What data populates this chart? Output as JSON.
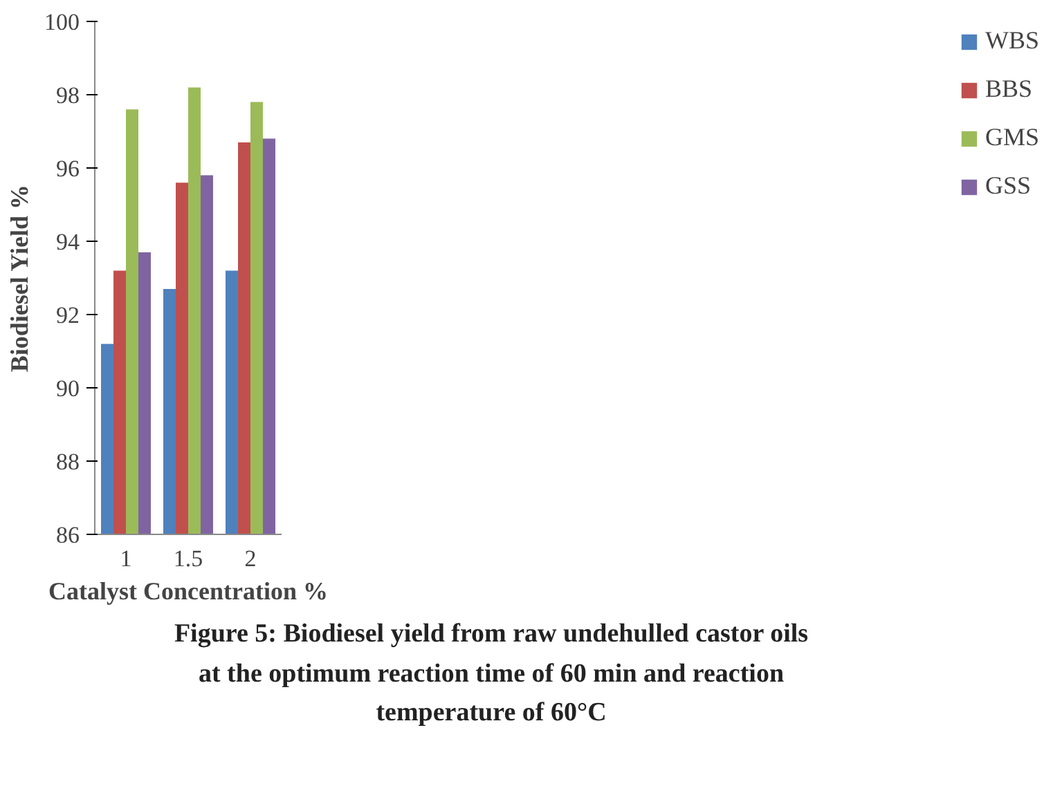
{
  "chart_data": {
    "type": "bar",
    "title": "Figure 5: Biodiesel yield from raw undehulled castor oils at the optimum reaction time of 60 min and reaction temperature of 60°C",
    "xlabel": "Catalyst Concentration %",
    "ylabel": "Biodiesel Yield %",
    "categories": [
      "1",
      "1.5",
      "2"
    ],
    "series": [
      {
        "name": "WBS",
        "color": "#4f81bd",
        "values": [
          91.2,
          92.7,
          93.2
        ]
      },
      {
        "name": "BBS",
        "color": "#c0504d",
        "values": [
          93.2,
          95.6,
          96.7
        ]
      },
      {
        "name": "GMS",
        "color": "#9bbb59",
        "values": [
          97.6,
          98.2,
          97.8
        ]
      },
      {
        "name": "GSS",
        "color": "#8064a2",
        "values": [
          93.7,
          95.8,
          96.8
        ]
      }
    ],
    "ylim": [
      86,
      100
    ],
    "yticks": [
      86,
      88,
      90,
      92,
      94,
      96,
      98,
      100
    ],
    "grid": false,
    "legend": "right"
  }
}
